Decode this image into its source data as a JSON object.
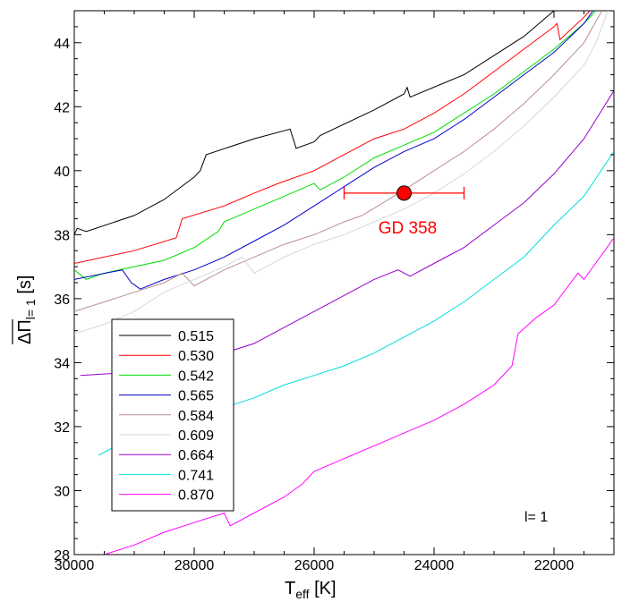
{
  "chart_data": {
    "type": "line",
    "xlabel": {
      "main": "T",
      "sub": "eff",
      "unit": " [K]"
    },
    "ylabel": {
      "main": "ΔΠ",
      "sub": "l= 1",
      "unit": " [s]"
    },
    "xlim": [
      30000,
      21000
    ],
    "ylim": [
      28,
      45
    ],
    "x_reversed": true,
    "x_ticks": [
      30000,
      28000,
      26000,
      24000,
      22000
    ],
    "x_tick_labels": [
      "30000",
      "28000",
      "26000",
      "24000",
      "22000"
    ],
    "y_ticks": [
      28,
      30,
      32,
      34,
      36,
      38,
      40,
      42,
      44
    ],
    "y_tick_labels": [
      "28",
      "30",
      "32",
      "34",
      "36",
      "38",
      "40",
      "42",
      "44"
    ],
    "legend_position": "bottom-left",
    "annotation": "l= 1",
    "series": [
      {
        "name": "0.515",
        "color": "#000000",
        "points": [
          [
            30000,
            38.0
          ],
          [
            29950,
            38.2
          ],
          [
            29800,
            38.1
          ],
          [
            29000,
            38.6
          ],
          [
            28500,
            39.1
          ],
          [
            28000,
            39.8
          ],
          [
            27900,
            40.0
          ],
          [
            27800,
            40.5
          ],
          [
            27000,
            41.0
          ],
          [
            26400,
            41.3
          ],
          [
            26300,
            40.7
          ],
          [
            26000,
            40.9
          ],
          [
            25900,
            41.1
          ],
          [
            25000,
            41.9
          ],
          [
            24500,
            42.4
          ],
          [
            24450,
            42.6
          ],
          [
            24400,
            42.3
          ],
          [
            23500,
            43.0
          ],
          [
            22500,
            44.2
          ],
          [
            22000,
            45.0
          ]
        ]
      },
      {
        "name": "0.530",
        "color": "#ff0000",
        "points": [
          [
            30000,
            37.1
          ],
          [
            29000,
            37.5
          ],
          [
            28300,
            37.9
          ],
          [
            28200,
            38.5
          ],
          [
            27500,
            38.9
          ],
          [
            27000,
            39.3
          ],
          [
            26600,
            39.6
          ],
          [
            26000,
            40.0
          ],
          [
            25500,
            40.5
          ],
          [
            25000,
            41.0
          ],
          [
            24500,
            41.3
          ],
          [
            24000,
            41.8
          ],
          [
            23500,
            42.4
          ],
          [
            23000,
            43.1
          ],
          [
            22500,
            43.8
          ],
          [
            22000,
            44.5
          ],
          [
            21950,
            44.6
          ],
          [
            21900,
            44.1
          ],
          [
            21500,
            44.8
          ],
          [
            21400,
            45.0
          ]
        ]
      },
      {
        "name": "0.542",
        "color": "#00dd00",
        "points": [
          [
            30000,
            36.9
          ],
          [
            29800,
            36.6
          ],
          [
            29500,
            36.8
          ],
          [
            28500,
            37.2
          ],
          [
            28000,
            37.6
          ],
          [
            27600,
            38.1
          ],
          [
            27500,
            38.4
          ],
          [
            27000,
            38.8
          ],
          [
            26500,
            39.2
          ],
          [
            26000,
            39.6
          ],
          [
            25900,
            39.4
          ],
          [
            25500,
            39.8
          ],
          [
            25000,
            40.4
          ],
          [
            24500,
            40.8
          ],
          [
            24000,
            41.2
          ],
          [
            23500,
            41.8
          ],
          [
            23000,
            42.4
          ],
          [
            22500,
            43.1
          ],
          [
            22000,
            43.8
          ],
          [
            21500,
            44.6
          ],
          [
            21300,
            45.0
          ]
        ]
      },
      {
        "name": "0.565",
        "color": "#0000cc",
        "points": [
          [
            30000,
            36.6
          ],
          [
            29200,
            36.9
          ],
          [
            29050,
            36.5
          ],
          [
            28900,
            36.3
          ],
          [
            28500,
            36.6
          ],
          [
            28000,
            36.9
          ],
          [
            27500,
            37.3
          ],
          [
            27000,
            37.8
          ],
          [
            26500,
            38.3
          ],
          [
            26000,
            38.9
          ],
          [
            25500,
            39.5
          ],
          [
            25000,
            40.1
          ],
          [
            24500,
            40.6
          ],
          [
            24000,
            41.0
          ],
          [
            23500,
            41.6
          ],
          [
            23000,
            42.3
          ],
          [
            22500,
            43.0
          ],
          [
            22000,
            43.7
          ],
          [
            21500,
            44.6
          ],
          [
            21350,
            45.0
          ]
        ]
      },
      {
        "name": "0.584",
        "color": "#bc8f8f",
        "points": [
          [
            30000,
            35.6
          ],
          [
            29500,
            35.9
          ],
          [
            29000,
            36.2
          ],
          [
            28500,
            36.5
          ],
          [
            28200,
            36.8
          ],
          [
            28000,
            36.4
          ],
          [
            27500,
            36.9
          ],
          [
            27000,
            37.3
          ],
          [
            26500,
            37.7
          ],
          [
            26000,
            38.0
          ],
          [
            25500,
            38.4
          ],
          [
            25200,
            38.6
          ],
          [
            24500,
            39.4
          ],
          [
            24000,
            40.0
          ],
          [
            23500,
            40.6
          ],
          [
            23000,
            41.3
          ],
          [
            22500,
            42.1
          ],
          [
            22000,
            43.0
          ],
          [
            21500,
            44.0
          ],
          [
            21200,
            45.0
          ]
        ]
      },
      {
        "name": "0.609",
        "color": "#d8d8d8",
        "points": [
          [
            30000,
            34.9
          ],
          [
            29500,
            35.2
          ],
          [
            29000,
            35.6
          ],
          [
            28500,
            36.2
          ],
          [
            28000,
            36.6
          ],
          [
            27500,
            37.0
          ],
          [
            27200,
            37.3
          ],
          [
            27000,
            36.8
          ],
          [
            26500,
            37.3
          ],
          [
            26000,
            37.7
          ],
          [
            25500,
            38.0
          ],
          [
            25000,
            38.4
          ],
          [
            24500,
            38.8
          ],
          [
            24000,
            39.3
          ],
          [
            23500,
            39.9
          ],
          [
            23000,
            40.6
          ],
          [
            22500,
            41.4
          ],
          [
            22000,
            42.3
          ],
          [
            21500,
            43.3
          ],
          [
            21300,
            44.0
          ],
          [
            21100,
            45.0
          ]
        ]
      },
      {
        "name": "0.664",
        "color": "#9900cc",
        "points": [
          [
            29900,
            33.6
          ],
          [
            29000,
            33.7
          ],
          [
            28500,
            33.9
          ],
          [
            28000,
            34.0
          ],
          [
            27500,
            34.3
          ],
          [
            27000,
            34.6
          ],
          [
            26500,
            35.1
          ],
          [
            26000,
            35.6
          ],
          [
            25500,
            36.1
          ],
          [
            25000,
            36.6
          ],
          [
            24600,
            36.9
          ],
          [
            24400,
            36.7
          ],
          [
            24000,
            37.1
          ],
          [
            23500,
            37.6
          ],
          [
            23000,
            38.3
          ],
          [
            22500,
            39.0
          ],
          [
            22000,
            39.9
          ],
          [
            21500,
            41.0
          ],
          [
            21000,
            42.5
          ]
        ]
      },
      {
        "name": "0.741",
        "color": "#00dddd",
        "points": [
          [
            29600,
            31.1
          ],
          [
            29400,
            31.3
          ],
          [
            29000,
            31.6
          ],
          [
            28500,
            32.0
          ],
          [
            28000,
            32.3
          ],
          [
            27500,
            32.6
          ],
          [
            27000,
            32.9
          ],
          [
            26500,
            33.3
          ],
          [
            26000,
            33.6
          ],
          [
            25500,
            33.9
          ],
          [
            25000,
            34.3
          ],
          [
            24500,
            34.8
          ],
          [
            24000,
            35.3
          ],
          [
            23500,
            35.9
          ],
          [
            23000,
            36.6
          ],
          [
            22500,
            37.3
          ],
          [
            22000,
            38.3
          ],
          [
            21500,
            39.2
          ],
          [
            21000,
            40.6
          ]
        ]
      },
      {
        "name": "0.870",
        "color": "#ff00ff",
        "points": [
          [
            29500,
            28.0
          ],
          [
            29000,
            28.3
          ],
          [
            28500,
            28.7
          ],
          [
            28000,
            29.0
          ],
          [
            27500,
            29.3
          ],
          [
            27400,
            28.9
          ],
          [
            27000,
            29.3
          ],
          [
            26500,
            29.8
          ],
          [
            26200,
            30.2
          ],
          [
            26000,
            30.6
          ],
          [
            25500,
            31.0
          ],
          [
            25000,
            31.4
          ],
          [
            24500,
            31.8
          ],
          [
            24000,
            32.2
          ],
          [
            23500,
            32.7
          ],
          [
            23000,
            33.3
          ],
          [
            22700,
            33.9
          ],
          [
            22600,
            34.9
          ],
          [
            22300,
            35.4
          ],
          [
            22000,
            35.8
          ],
          [
            21600,
            36.8
          ],
          [
            21500,
            36.6
          ],
          [
            21000,
            37.9
          ]
        ]
      }
    ],
    "observation": {
      "label": "GD 358",
      "x": 24500,
      "y": 39.3,
      "x_err_low": 25500,
      "x_err_high": 23500,
      "color": "#ff0000"
    }
  }
}
